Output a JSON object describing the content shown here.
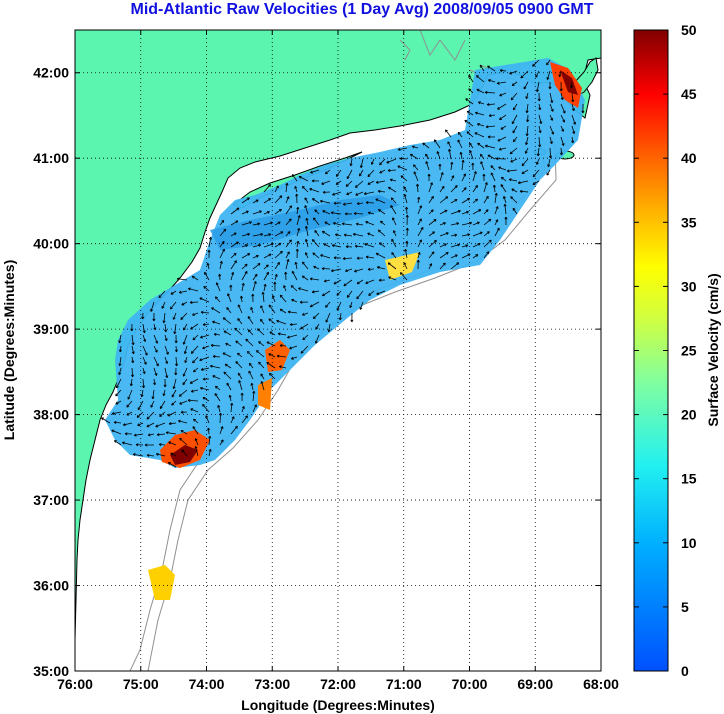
{
  "title": "Mid-Atlantic Raw Velocities (1 Day Avg) 2008/09/05 0900 GMT",
  "map": {
    "xlabel": "Longitude (Degrees:Minutes)",
    "ylabel": "Latitude (Degrees:Minutes)",
    "lon_ticks": [
      "76:00",
      "75:00",
      "74:00",
      "73:00",
      "72:00",
      "71:00",
      "70:00",
      "69:00",
      "68:00"
    ],
    "lat_ticks": [
      "42:00",
      "41:00",
      "40:00",
      "39:00",
      "38:00",
      "37:00",
      "36:00",
      "35:00"
    ],
    "lon_range": [
      -76,
      -68
    ],
    "lat_range": [
      35,
      42.5
    ],
    "land_color": "#5cf5b0",
    "water_color": "#ffffff",
    "grid": "dotted"
  },
  "colorbar": {
    "label": "Surface Velocity (cm/s)",
    "ticks": [
      "50",
      "45",
      "40",
      "35",
      "30",
      "25",
      "20",
      "15",
      "10",
      "5",
      "0"
    ],
    "min": 0,
    "max": 50,
    "units": "cm/s",
    "colormap": "jet"
  }
}
